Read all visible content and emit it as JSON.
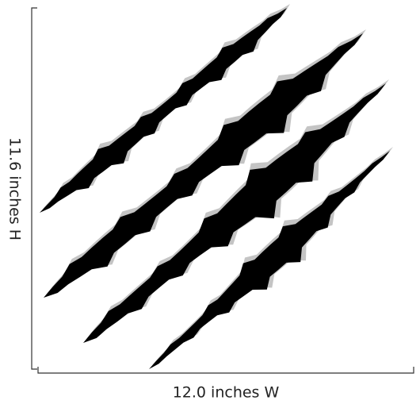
{
  "dimensions": {
    "height_label": "11.6 inches H",
    "width_label": "12.0 inches W"
  }
}
